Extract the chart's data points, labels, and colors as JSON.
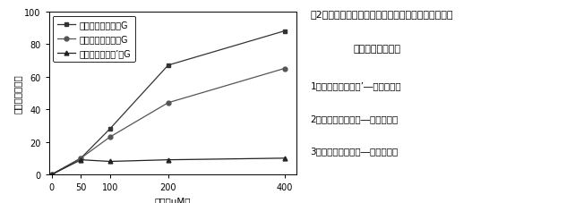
{
  "x": [
    0,
    50,
    100,
    200,
    400
  ],
  "series": [
    {
      "label": "ケルセチン－３－G",
      "values": [
        0,
        10,
        28,
        67,
        88
      ],
      "color": "#333333",
      "marker": "s",
      "linestyle": "-"
    },
    {
      "label": "ケルセチン－７－G",
      "values": [
        0,
        10,
        23,
        44,
        65
      ],
      "color": "#555555",
      "marker": "o",
      "linestyle": "-"
    },
    {
      "label": "ケルセチン－４’－G",
      "values": [
        0,
        9,
        8,
        9,
        10
      ],
      "color": "#222222",
      "marker": "^",
      "linestyle": "-"
    }
  ],
  "xlabel": "濃度（μM）",
  "ylabel": "生細胞数（％）",
  "ylim": [
    0,
    100
  ],
  "xlim": [
    -5,
    420
  ],
  "xticks": [
    0,
    50,
    100,
    200,
    400
  ],
  "yticks": [
    0,
    20,
    40,
    60,
    80,
    100
  ],
  "title_line1": "図2　糖の結合位置の異なるケルセチン配糖体の紫外",
  "title_line2": "線防護活性の比較",
  "legend1": "1：ケルセチン－４’―グルコシド",
  "legend2": "2：ケルセチン－３―グルコシド",
  "legend3": "3：ケルセチン－７―グルコシド",
  "background_color": "#ffffff",
  "font_size_axis": 7,
  "font_size_legend_plot": 7,
  "font_size_label": 7.5,
  "font_size_title": 8,
  "font_size_caption": 7.5
}
